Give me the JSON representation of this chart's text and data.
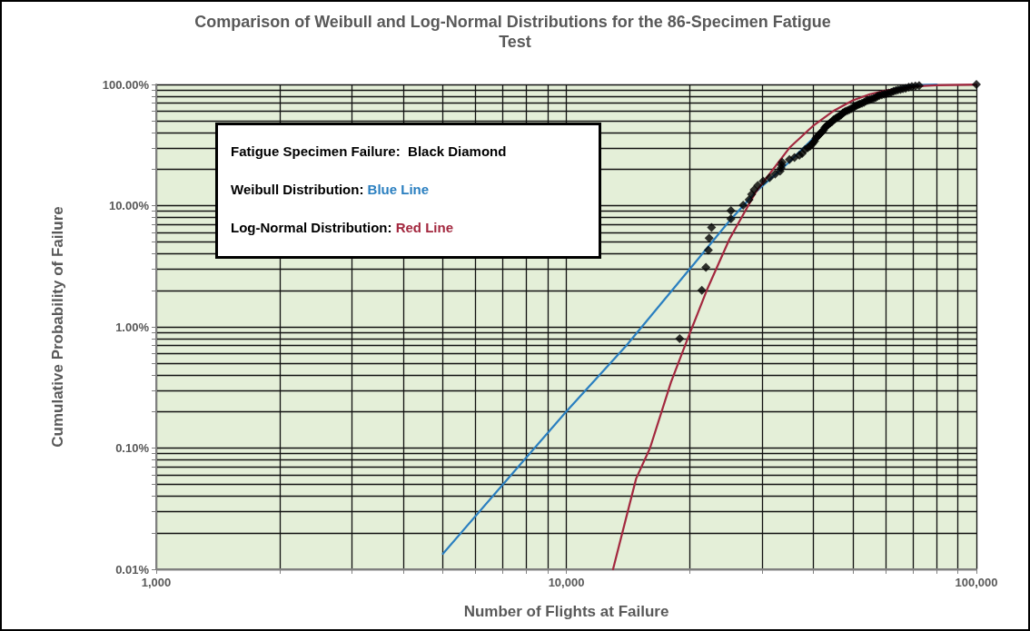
{
  "chart_data": {
    "type": "scatter",
    "title": "Comparison of Weibull and Log-Normal Distributions for the 86-Specimen Fatigue Test",
    "xlabel": "Number of Flights at Failure",
    "ylabel": "Cumulative Probability of Failure",
    "log": "xy",
    "grid": true,
    "marker": "diamond",
    "annotations": [
      "Fatigue Specimen Failure:  Black Diamond",
      "Weibull Distribution: Blue Line",
      "Log-Normal Distribution: Red Line"
    ],
    "xlim": [
      1000,
      100000
    ],
    "ylim": [
      0.01,
      100
    ],
    "xticks": [
      {
        "value": 1000,
        "label": "1,000"
      },
      {
        "value": 2000,
        "label": null
      },
      {
        "value": 3000,
        "label": null
      },
      {
        "value": 4000,
        "label": null
      },
      {
        "value": 5000,
        "label": null
      },
      {
        "value": 6000,
        "label": null
      },
      {
        "value": 7000,
        "label": null
      },
      {
        "value": 8000,
        "label": null
      },
      {
        "value": 9000,
        "label": null
      },
      {
        "value": 10000,
        "label": "10,000"
      },
      {
        "value": 20000,
        "label": null
      },
      {
        "value": 30000,
        "label": null
      },
      {
        "value": 40000,
        "label": null
      },
      {
        "value": 50000,
        "label": null
      },
      {
        "value": 60000,
        "label": null
      },
      {
        "value": 70000,
        "label": null
      },
      {
        "value": 80000,
        "label": null
      },
      {
        "value": 90000,
        "label": null
      },
      {
        "value": 100000,
        "label": "100,000"
      }
    ],
    "yticks": [
      {
        "value": 0.01,
        "label": "0.01%"
      },
      {
        "value": 0.02,
        "label": null
      },
      {
        "value": 0.03,
        "label": null
      },
      {
        "value": 0.04,
        "label": null
      },
      {
        "value": 0.05,
        "label": null
      },
      {
        "value": 0.06,
        "label": null
      },
      {
        "value": 0.07,
        "label": null
      },
      {
        "value": 0.08,
        "label": null
      },
      {
        "value": 0.09,
        "label": null
      },
      {
        "value": 0.1,
        "label": "0.10%"
      },
      {
        "value": 0.2,
        "label": null
      },
      {
        "value": 0.3,
        "label": null
      },
      {
        "value": 0.4,
        "label": null
      },
      {
        "value": 0.5,
        "label": null
      },
      {
        "value": 0.6,
        "label": null
      },
      {
        "value": 0.7,
        "label": null
      },
      {
        "value": 0.8,
        "label": null
      },
      {
        "value": 0.9,
        "label": null
      },
      {
        "value": 1,
        "label": "1.00%"
      },
      {
        "value": 2,
        "label": null
      },
      {
        "value": 3,
        "label": null
      },
      {
        "value": 4,
        "label": null
      },
      {
        "value": 5,
        "label": null
      },
      {
        "value": 6,
        "label": null
      },
      {
        "value": 7,
        "label": null
      },
      {
        "value": 8,
        "label": null
      },
      {
        "value": 9,
        "label": null
      },
      {
        "value": 10,
        "label": "10.00%"
      },
      {
        "value": 20,
        "label": null
      },
      {
        "value": 30,
        "label": null
      },
      {
        "value": 40,
        "label": null
      },
      {
        "value": 50,
        "label": null
      },
      {
        "value": 60,
        "label": null
      },
      {
        "value": 70,
        "label": null
      },
      {
        "value": 80,
        "label": null
      },
      {
        "value": 90,
        "label": null
      },
      {
        "value": 100,
        "label": "100.00%"
      }
    ],
    "series": [
      {
        "color": "#000000",
        "x": [
          18900,
          21400,
          21900,
          22200,
          22300,
          22600,
          25200,
          25200,
          27000,
          27900,
          28300,
          28700,
          29300,
          30200,
          31300,
          32300,
          33200,
          33400,
          33500,
          33600,
          35000,
          36000,
          37000,
          37600,
          38200,
          38800,
          39300,
          39700,
          40000,
          40300,
          40600,
          40900,
          41200,
          41500,
          41800,
          42100,
          42400,
          42700,
          43000,
          43300,
          43600,
          44000,
          44400,
          44800,
          45200,
          45600,
          46000,
          46400,
          46800,
          47200,
          47600,
          48000,
          48500,
          49000,
          49500,
          50000,
          50500,
          51000,
          51500,
          52000,
          52600,
          53200,
          53800,
          54400,
          55000,
          55600,
          56200,
          56800,
          57400,
          58000,
          58800,
          59600,
          60400,
          61200,
          62000,
          62800,
          63600,
          64400,
          65300,
          66200,
          67200,
          68400,
          69600,
          71000,
          72500,
          100000
        ],
        "values": [
          0.8,
          2.0,
          3.1,
          4.3,
          5.4,
          6.6,
          7.8,
          9.1,
          10.1,
          11.2,
          12.4,
          13.5,
          14.7,
          15.9,
          17.0,
          18.2,
          19.3,
          20.5,
          21.6,
          22.8,
          24,
          25,
          26,
          27,
          29,
          30,
          31,
          32,
          33,
          34,
          36,
          37,
          38,
          39,
          40,
          41,
          42,
          44,
          45,
          46,
          47,
          48,
          49,
          51,
          52,
          53,
          54,
          55,
          56,
          58,
          59,
          60,
          61,
          62,
          63,
          64,
          66,
          67,
          68,
          69,
          70,
          71,
          73,
          74,
          75,
          76,
          77,
          78,
          80,
          81,
          82,
          83,
          84,
          85,
          86,
          88,
          89,
          90,
          91,
          92,
          93,
          95,
          96,
          97,
          98,
          100
        ]
      },
      {
        "type": "line",
        "marker": "none",
        "color": "#2a7fc0",
        "x": [
          5000,
          7000,
          10000,
          14000,
          20000,
          25000,
          29000,
          35000,
          40000,
          45000,
          50000,
          55000,
          60000,
          65000,
          70000,
          80000
        ],
        "values": [
          0.0134,
          0.05,
          0.2,
          0.7,
          3,
          7.5,
          13,
          23,
          36,
          50,
          65,
          78,
          88,
          94,
          98,
          99.9
        ]
      },
      {
        "type": "line",
        "marker": "none",
        "color": "#a3283f",
        "x": [
          13000,
          14800,
          16000,
          18000,
          19800,
          22000,
          25000,
          29000,
          35000,
          40100,
          45000,
          50000,
          55000,
          60000,
          70000,
          80000,
          100000
        ],
        "values": [
          0.01,
          0.056,
          0.1,
          0.35,
          0.81,
          2,
          5.3,
          13,
          30,
          46,
          61,
          74,
          83,
          89,
          96,
          98.6,
          99.8
        ]
      }
    ]
  }
}
